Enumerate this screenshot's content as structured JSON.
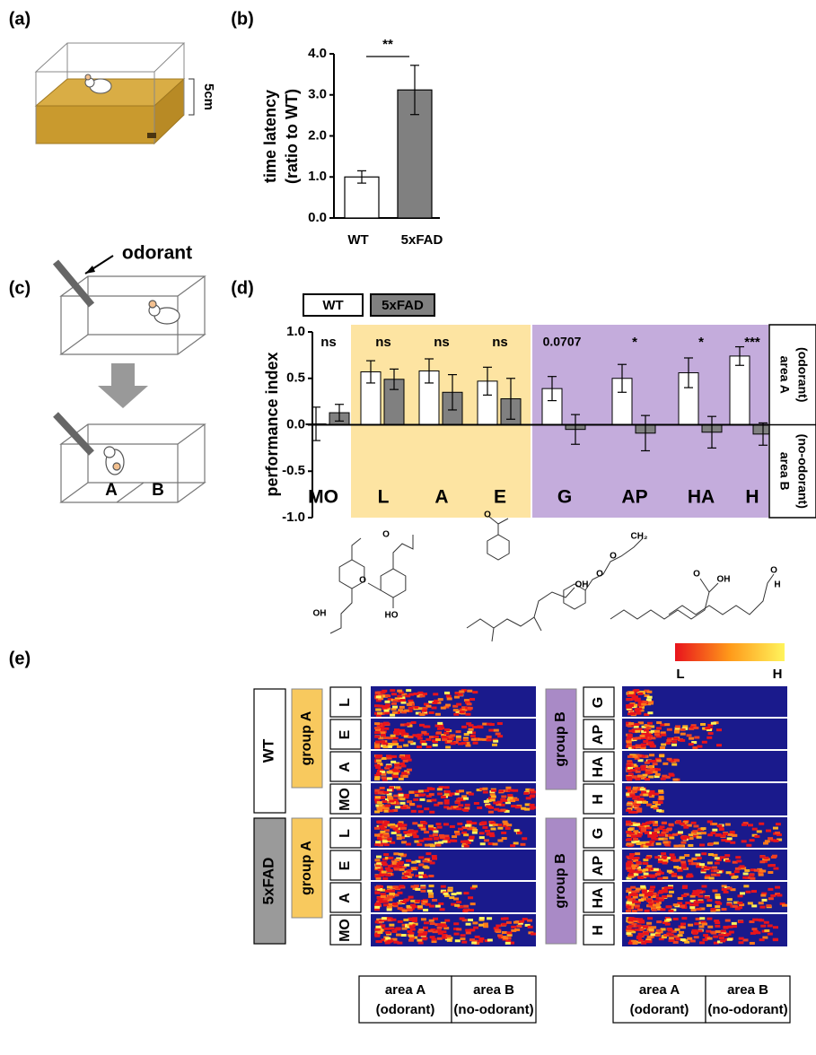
{
  "panel_labels": [
    "(a)",
    "(b)",
    "(c)",
    "(d)",
    "(e)"
  ],
  "panel_a": {
    "dimension_label": "5cm"
  },
  "panel_c": {
    "odorant_label": "odorant",
    "area_labels": [
      "A",
      "B"
    ]
  },
  "chart_data": [
    {
      "type": "bar",
      "ylabel": [
        "time latency",
        "(ratio to WT)"
      ],
      "categories": [
        "WT",
        "5xFAD"
      ],
      "values": [
        1.0,
        3.12
      ],
      "errors": [
        0.15,
        0.6
      ],
      "colors": [
        "#ffffff",
        "#808080"
      ],
      "ylim": [
        0,
        4
      ],
      "yticks": [
        {
          "value": 0,
          "label": "0.0"
        },
        {
          "value": 1,
          "label": "1.0"
        },
        {
          "value": 2,
          "label": "2.0"
        },
        {
          "value": 3,
          "label": "3.0"
        },
        {
          "value": 4,
          "label": "4.0"
        }
      ],
      "annotation": "**"
    },
    {
      "type": "bar",
      "ylabel": "performance index",
      "categories": [
        "MO",
        "L",
        "A",
        "E",
        "G",
        "AP",
        "HA",
        "H"
      ],
      "series": [
        {
          "name": "WT",
          "color": "#ffffff",
          "values": [
            0.01,
            0.57,
            0.58,
            0.47,
            0.39,
            0.5,
            0.56,
            0.74
          ],
          "errors": [
            0.18,
            0.12,
            0.13,
            0.15,
            0.13,
            0.15,
            0.16,
            0.1
          ]
        },
        {
          "name": "5xFAD",
          "color": "#808080",
          "values": [
            0.13,
            0.49,
            0.35,
            0.28,
            -0.05,
            -0.09,
            -0.08,
            -0.1
          ],
          "errors": [
            0.09,
            0.11,
            0.19,
            0.22,
            0.16,
            0.19,
            0.17,
            0.12
          ]
        }
      ],
      "ylim": [
        -1,
        1
      ],
      "yticks": [
        {
          "value": -1,
          "label": "-1.0"
        },
        {
          "value": -0.5,
          "label": "-0.5"
        },
        {
          "value": 0,
          "label": "0.0"
        },
        {
          "value": 0.5,
          "label": "0.5"
        },
        {
          "value": 1,
          "label": "1.0"
        }
      ],
      "annotations": [
        "ns",
        "ns",
        "ns",
        "ns",
        "0.0707",
        "*",
        "*",
        "***"
      ],
      "highlights": [
        {
          "categories": [
            "L",
            "A",
            "E"
          ],
          "color": "#fde4a2"
        },
        {
          "categories": [
            "G",
            "AP",
            "HA",
            "H"
          ],
          "color": "#c4acdc"
        }
      ],
      "side_labels": [
        [
          "area A",
          "(odorant)"
        ],
        [
          "area B",
          "(no-odorant)"
        ]
      ]
    }
  ],
  "structures": [
    [
      "O",
      "OH"
    ],
    [
      "O",
      "HO"
    ],
    [
      "O"
    ],
    [
      "OH"
    ],
    [
      "O",
      "O",
      "CH₂"
    ],
    [
      "O",
      "OH"
    ],
    [
      "O",
      "H"
    ]
  ],
  "heatmap": {
    "colorbar_labels": [
      "L",
      "H"
    ],
    "genotypes": [
      "WT",
      "5xFAD"
    ],
    "left_group": "group A",
    "right_group": "group B",
    "left_rows": [
      "L",
      "E",
      "A",
      "MO"
    ],
    "right_rows": [
      "G",
      "AP",
      "HA",
      "H"
    ],
    "area_labels": [
      [
        "area A",
        "(odorant)"
      ],
      [
        "area B",
        "(no-odorant)"
      ]
    ]
  }
}
